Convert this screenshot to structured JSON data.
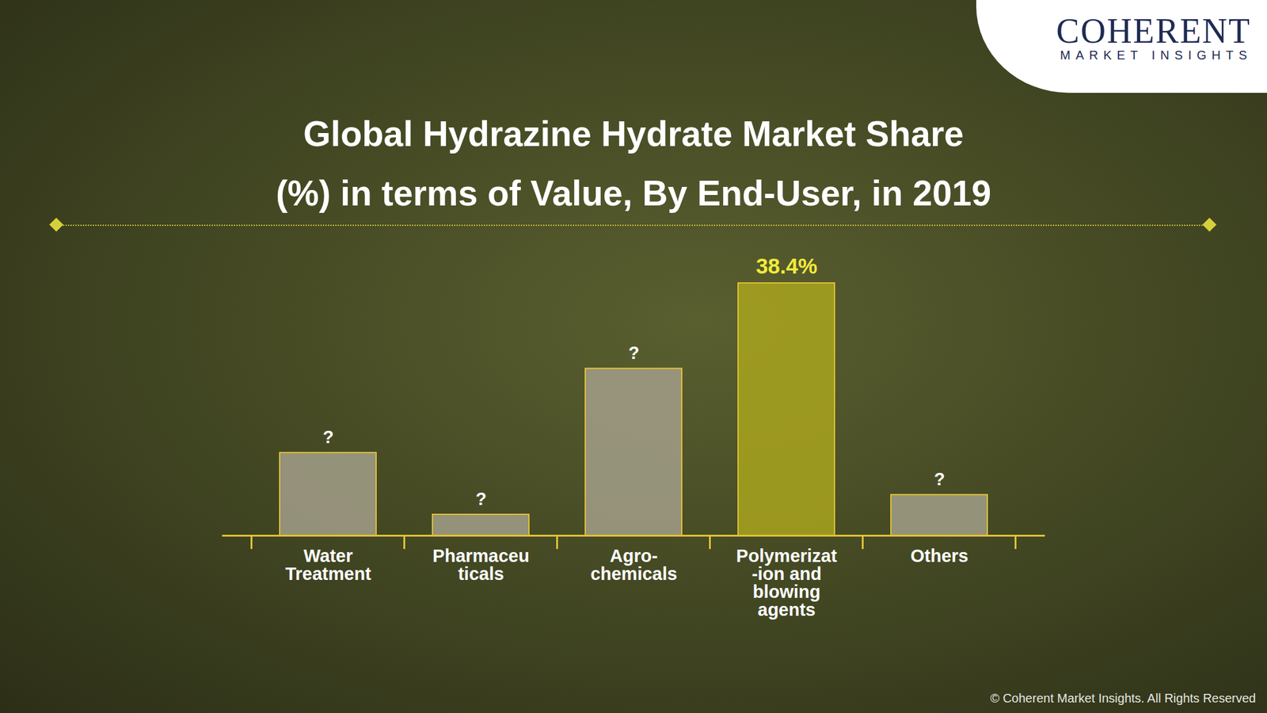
{
  "chart_data": {
    "type": "bar",
    "title": "Global Hydrazine Hydrate Market Share\n(%) in terms of Value, By End-User, in 2019",
    "categories": [
      "Water\nTreatment",
      "Pharmaceu\nticals",
      "Agro-\nchemicals",
      "Polymerizat\n-ion and\nblowing\nagents",
      "Others"
    ],
    "values": [
      12.6,
      3.2,
      25.4,
      38.4,
      6.2
    ],
    "value_labels": [
      "?",
      "?",
      "?",
      "38.4%",
      "?"
    ],
    "colors": [
      "#a39f8a",
      "#a39f8a",
      "#a39f8a",
      "#a9a51e",
      "#a39f8a"
    ],
    "ylim": [
      0,
      45
    ],
    "data_labels": true,
    "tick_labels": "x",
    "grid": false,
    "logo": [
      "COHERENT",
      "MARKET INSIGHTS"
    ],
    "copyright": "© Coherent Market Insights. All Rights Reserved"
  }
}
